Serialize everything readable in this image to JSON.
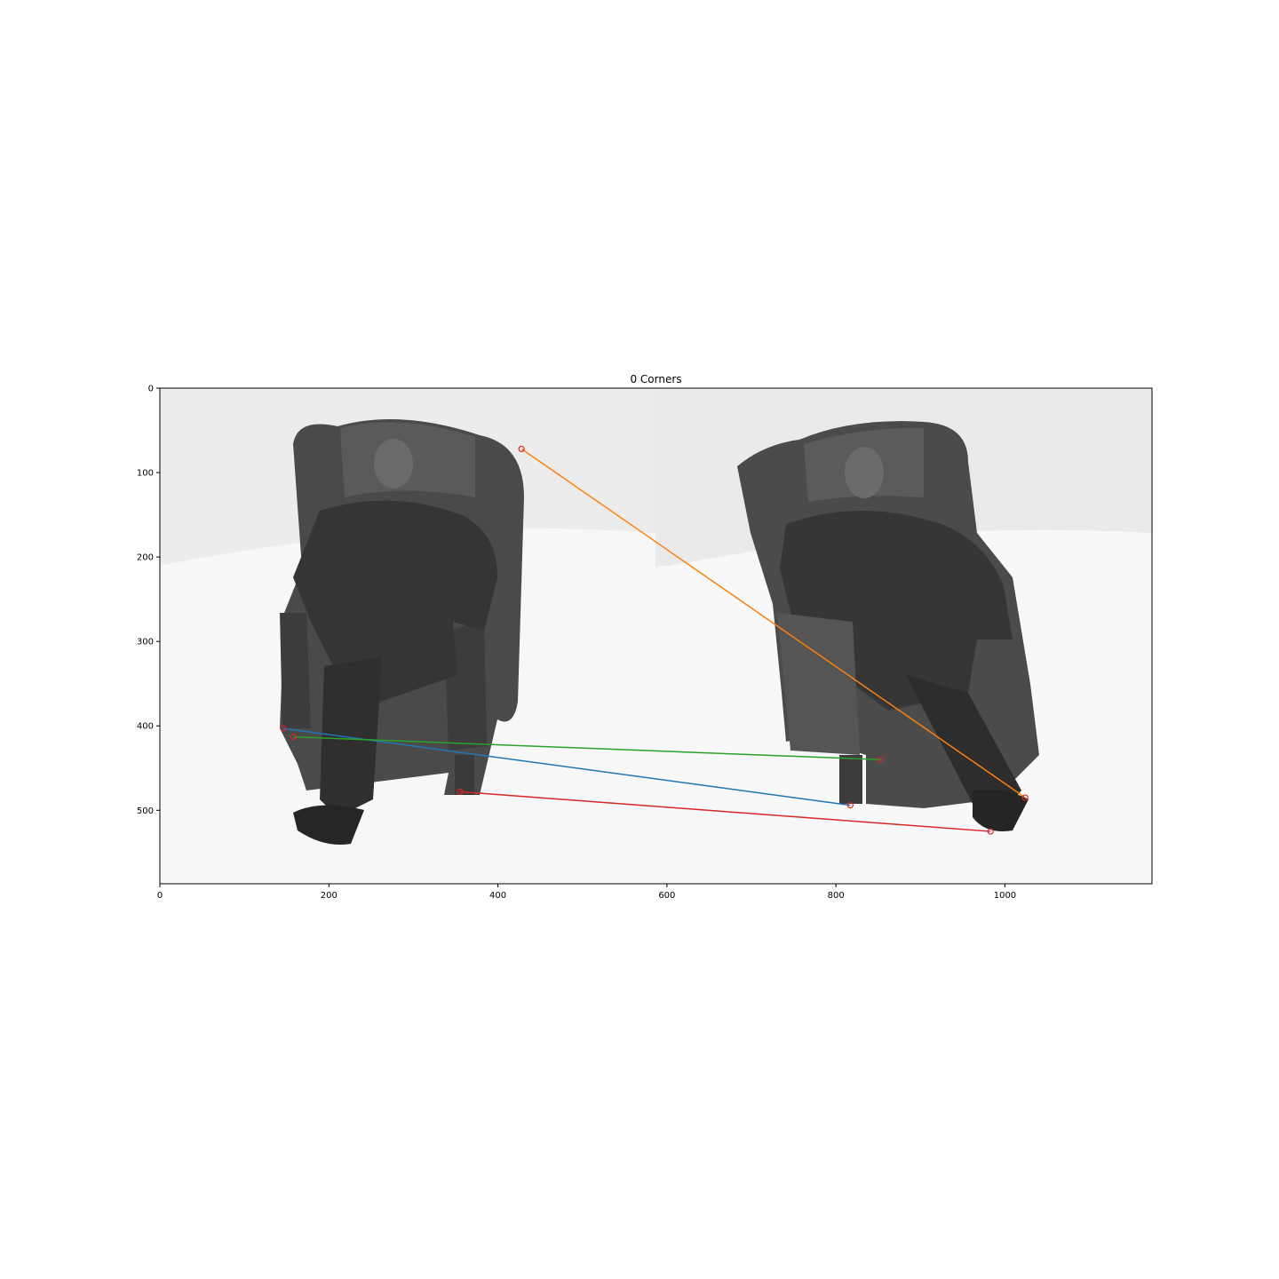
{
  "chart_data": {
    "type": "scatter",
    "title": "0 Corners",
    "xlabel": "",
    "ylabel": "",
    "xlim": [
      0,
      1174
    ],
    "ylim": [
      587,
      0
    ],
    "y_inverted": true,
    "grid": false,
    "legend": "none",
    "x_ticks": [
      0,
      200,
      400,
      600,
      800,
      1000
    ],
    "y_ticks": [
      0,
      100,
      200,
      300,
      400,
      500
    ],
    "background": "grayscale photograph: two views of a seated figure in a wingback armchair, left and right halves",
    "keypoint_color": "#d62728",
    "matches": [
      {
        "color": "#1f77b4",
        "x1": 146,
        "y1": 403,
        "x2": 817,
        "y2": 494
      },
      {
        "color": "#ff7f0e",
        "x1": 428,
        "y1": 72,
        "x2": 1024,
        "y2": 485
      },
      {
        "color": "#2ca02c",
        "x1": 158,
        "y1": 413,
        "x2": 853,
        "y2": 440
      },
      {
        "color": "#d62728",
        "x1": 355,
        "y1": 478,
        "x2": 983,
        "y2": 525
      }
    ]
  }
}
